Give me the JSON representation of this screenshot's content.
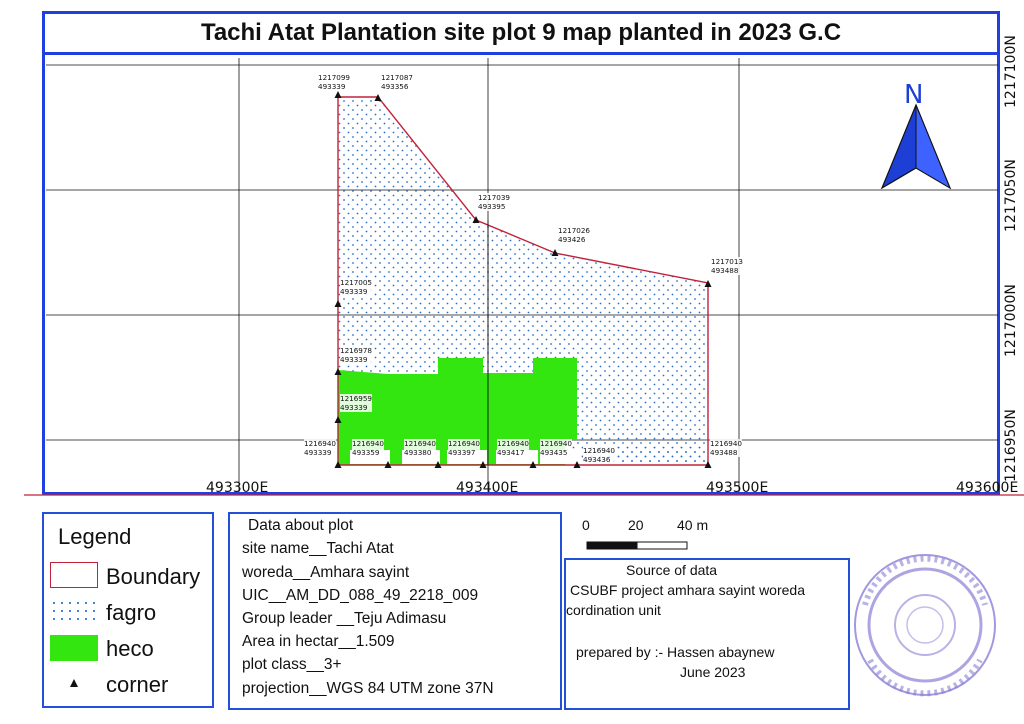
{
  "title": "Tachi Atat Plantation site plot 9 map planted in 2023 G.C",
  "map": {
    "easting_labels": [
      "493300E",
      "493400E",
      "493500E",
      "493600E"
    ],
    "northing_labels": [
      "1217100N",
      "1217050N",
      "1217000N",
      "1216950N"
    ],
    "north_arrow": {
      "letter": "N",
      "icon": "north-arrow-icon",
      "color": "#1d3fd6"
    },
    "boundary_color": "#c0223a",
    "fagro_color": "#2a6fc9",
    "heco_color": "#33e60f",
    "points": [
      {
        "id": "p1",
        "northing": "1217099",
        "easting": "493339"
      },
      {
        "id": "p2",
        "northing": "1217087",
        "easting": "493356"
      },
      {
        "id": "p3",
        "northing": "1217039",
        "easting": "493395"
      },
      {
        "id": "p4",
        "northing": "1217026",
        "easting": "493426"
      },
      {
        "id": "p5",
        "northing": "1217013",
        "easting": "493488"
      },
      {
        "id": "p6",
        "northing": "1217005",
        "easting": "493339"
      },
      {
        "id": "p7",
        "northing": "1216978",
        "easting": "493339"
      },
      {
        "id": "p8",
        "northing": "1216959",
        "easting": "493339"
      },
      {
        "id": "p9",
        "northing": "1216940",
        "easting": "493339"
      },
      {
        "id": "p10",
        "northing": "1216940",
        "easting": "493359"
      },
      {
        "id": "p11",
        "northing": "1216940",
        "easting": "493380"
      },
      {
        "id": "p12",
        "northing": "1216940",
        "easting": "493397"
      },
      {
        "id": "p13",
        "northing": "1216940",
        "easting": "493417"
      },
      {
        "id": "p14",
        "northing": "1216940",
        "easting": "493435"
      },
      {
        "id": "p15",
        "northing": "1216940",
        "easting": "493436"
      },
      {
        "id": "p16",
        "northing": "1216940",
        "easting": "493488"
      }
    ]
  },
  "legend": {
    "title": "Legend",
    "items": [
      {
        "label": "Boundary",
        "color": "#c0223a"
      },
      {
        "label": "fagro",
        "color": "#2a6fc9"
      },
      {
        "label": "heco",
        "color": "#33e60f"
      },
      {
        "label": "corner",
        "icon": "triangle-icon"
      }
    ]
  },
  "plot_info": {
    "heading": "Data about plot",
    "lines": [
      "site name__Tachi Atat",
      "woreda__Amhara sayint",
      "UIC__AM_DD_088_49_2218_009",
      "Group leader __Teju Adimasu",
      "Area in hectar__1.509",
      "plot class__3+",
      "projection__WGS 84 UTM zone 37N"
    ]
  },
  "scale_bar": {
    "labels": [
      "0",
      "20",
      "40 m"
    ]
  },
  "source": {
    "heading": "Source of data",
    "line1": "CSUBF project amhara sayint woreda",
    "line2": "cordination unit",
    "prepared": "prepared by :- Hassen abaynew",
    "date": "June 2023"
  },
  "stamp": {
    "icon": "official-stamp-icon",
    "color": "#8a7fd6"
  }
}
